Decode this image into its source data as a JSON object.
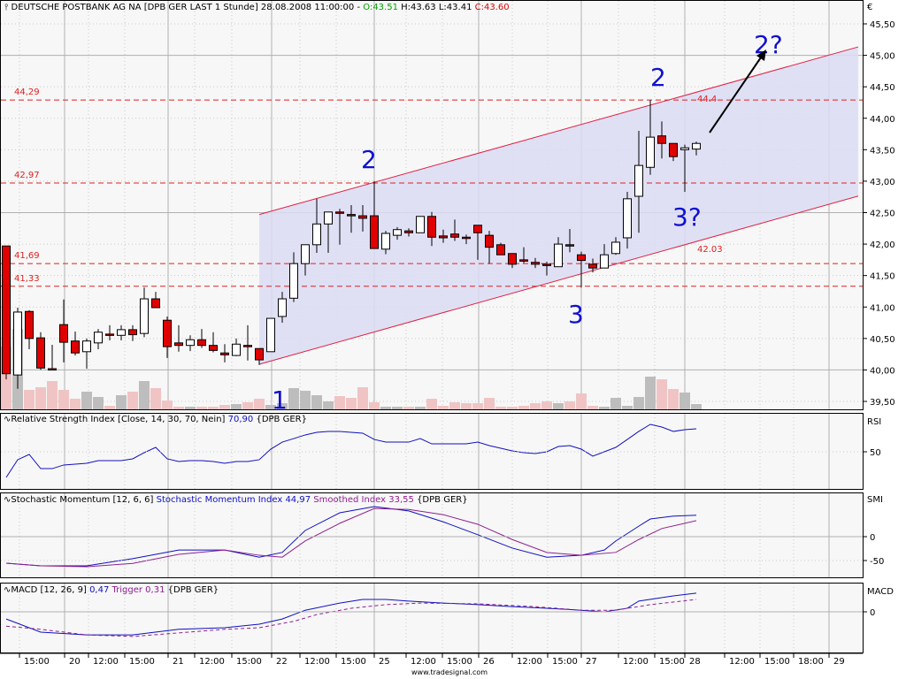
{
  "header": {
    "instrument": "DEUTSCHE POSTBANK AG NA [DPB GER LAST 1 Stunde] 28.08.2008 11:00:00 -",
    "open": "O:43.51",
    "high": "H:43.63",
    "low": "L:43.41",
    "close": "C:43.60",
    "icon": "candlestick-icon"
  },
  "panels": {
    "rsi": {
      "label": "Relative Strength Index [Close, 14, 30, 70, Nein]",
      "value": "70,90",
      "source": "{DPB GER}",
      "axis_title": "RSI",
      "ticks": [
        "50"
      ]
    },
    "smi": {
      "label": "Stochastic Momentum [12, 6, 6]",
      "series1": "Stochastic Momentum Index 44,97",
      "series2": "Smoothed Index 33,55",
      "source": "{DPB GER}",
      "axis_title": "SMI",
      "ticks": [
        "0",
        "-50"
      ]
    },
    "macd": {
      "label": "MACD [12, 26, 9]",
      "value": "0,47",
      "trigger": "Trigger 0,31",
      "source": "{DPB GER}",
      "axis_title": "MACD",
      "ticks": [
        "0"
      ]
    }
  },
  "footer": "www.tradesignal.com",
  "annotations": {
    "waves": [
      "1",
      "2",
      "3",
      "2",
      "3?",
      "2?"
    ],
    "level_labels": [
      "44,29",
      "42,97",
      "41,69",
      "41,33"
    ],
    "channel_labels": [
      "44.4",
      "42.03"
    ]
  },
  "colors": {
    "up": "#ffffff",
    "down": "#e00000",
    "channel_fill": "#dcdcf4",
    "channel_line": "#e02040",
    "level_line": "#e02020",
    "wave_text": "#1010d0",
    "rsi": "#1010c0",
    "smi": "#1010c0",
    "smoothed": "#902090",
    "volume_up": "#bdbdbd",
    "volume_down": "#f0c4c4"
  },
  "chart_data": {
    "type": "candlestick",
    "currency_label": "€",
    "ylim": [
      39.5,
      45.5
    ],
    "y_ticks": [
      "45,50",
      "45,00",
      "44,50",
      "44,00",
      "43,50",
      "43,00",
      "42,50",
      "42,00",
      "41,50",
      "41,00",
      "40,50",
      "40,00",
      "39,50"
    ],
    "x_ticks": [
      "15:00",
      "20",
      "12:00",
      "15:00",
      "21",
      "12:00",
      "15:00",
      "22",
      "12:00",
      "15:00",
      "25",
      "12:00",
      "15:00",
      "26",
      "12:00",
      "15:00",
      "27",
      "12:00",
      "15:00",
      "28",
      "12:00",
      "15:00",
      "18:00",
      "29"
    ],
    "levels": [
      44.29,
      42.97,
      41.69,
      41.33
    ],
    "channel": {
      "start_bar": 22,
      "end_bar": 74,
      "upper": [
        42.47,
        45.13
      ],
      "lower": [
        40.09,
        42.76
      ]
    },
    "ohlc": [
      [
        41.97,
        41.97,
        39.85,
        39.94
      ],
      [
        39.92,
        40.99,
        39.7,
        40.92
      ],
      [
        40.93,
        40.95,
        40.33,
        40.5
      ],
      [
        40.51,
        40.6,
        40.0,
        40.03
      ],
      [
        40.02,
        40.4,
        40.0,
        40.0
      ],
      [
        40.72,
        41.12,
        40.12,
        40.44
      ],
      [
        40.46,
        40.61,
        40.23,
        40.27
      ],
      [
        40.29,
        40.5,
        40.02,
        40.46
      ],
      [
        40.43,
        40.65,
        40.33,
        40.6
      ],
      [
        40.57,
        40.71,
        40.47,
        40.56
      ],
      [
        40.55,
        40.71,
        40.47,
        40.64
      ],
      [
        40.64,
        40.71,
        40.46,
        40.56
      ],
      [
        40.58,
        41.31,
        40.52,
        41.13
      ],
      [
        41.13,
        41.24,
        40.99,
        40.99
      ],
      [
        40.79,
        40.85,
        40.19,
        40.37
      ],
      [
        40.43,
        40.71,
        40.29,
        40.39
      ],
      [
        40.39,
        40.55,
        40.3,
        40.48
      ],
      [
        40.48,
        40.65,
        40.35,
        40.39
      ],
      [
        40.39,
        40.6,
        40.28,
        40.31
      ],
      [
        40.27,
        40.41,
        40.12,
        40.24
      ],
      [
        40.23,
        40.5,
        40.22,
        40.41
      ],
      [
        40.39,
        40.71,
        40.15,
        40.38
      ],
      [
        40.34,
        40.34,
        40.08,
        40.16
      ],
      [
        40.29,
        40.82,
        40.29,
        40.82
      ],
      [
        40.85,
        41.24,
        40.75,
        41.13
      ],
      [
        41.14,
        41.87,
        41.08,
        41.69
      ],
      [
        41.69,
        41.99,
        41.5,
        41.99
      ],
      [
        41.99,
        42.72,
        41.86,
        42.32
      ],
      [
        42.32,
        42.51,
        41.86,
        42.51
      ],
      [
        42.51,
        42.56,
        41.99,
        42.5
      ],
      [
        42.47,
        42.62,
        42.18,
        42.46
      ],
      [
        42.45,
        42.62,
        42.2,
        42.41
      ],
      [
        42.45,
        43.0,
        41.93,
        41.93
      ],
      [
        41.92,
        42.21,
        41.84,
        42.17
      ],
      [
        42.14,
        42.27,
        42.07,
        42.23
      ],
      [
        42.21,
        42.25,
        42.12,
        42.18
      ],
      [
        42.18,
        42.44,
        42.18,
        42.44
      ],
      [
        42.44,
        42.51,
        41.97,
        42.11
      ],
      [
        42.13,
        42.23,
        42.02,
        42.1
      ],
      [
        42.16,
        42.39,
        42.05,
        42.11
      ],
      [
        42.11,
        42.15,
        42.0,
        42.1
      ],
      [
        42.3,
        42.3,
        41.75,
        42.18
      ],
      [
        42.14,
        42.21,
        41.69,
        41.95
      ],
      [
        41.99,
        42.02,
        41.83,
        41.83
      ],
      [
        41.85,
        41.85,
        41.62,
        41.68
      ],
      [
        41.75,
        41.95,
        41.7,
        41.74
      ],
      [
        41.71,
        41.78,
        41.62,
        41.68
      ],
      [
        41.68,
        41.72,
        41.5,
        41.67
      ],
      [
        41.64,
        42.11,
        41.64,
        42.0
      ],
      [
        41.99,
        42.24,
        41.87,
        41.98
      ],
      [
        41.83,
        41.88,
        41.31,
        41.74
      ],
      [
        41.68,
        41.77,
        41.55,
        41.62
      ],
      [
        41.62,
        42.0,
        41.62,
        41.83
      ],
      [
        41.85,
        42.11,
        41.83,
        42.03
      ],
      [
        42.1,
        42.83,
        41.93,
        42.72
      ],
      [
        42.76,
        43.8,
        42.18,
        43.25
      ],
      [
        43.22,
        44.29,
        43.1,
        43.7
      ],
      [
        43.72,
        43.95,
        43.36,
        43.6
      ],
      [
        43.6,
        43.6,
        43.32,
        43.39
      ],
      [
        43.5,
        43.58,
        42.83,
        43.53
      ],
      [
        43.51,
        43.63,
        43.41,
        43.6
      ]
    ],
    "volume": [
      71,
      91,
      22,
      25,
      32,
      22,
      12,
      20,
      14,
      4,
      16,
      20,
      32,
      24,
      10,
      3,
      3,
      3,
      3,
      5,
      6,
      8,
      12,
      5,
      7,
      24,
      21,
      16,
      9,
      15,
      13,
      25,
      8,
      3,
      3,
      3,
      3,
      12,
      4,
      8,
      7,
      7,
      13,
      3,
      3,
      4,
      7,
      9,
      7,
      9,
      18,
      4,
      3,
      13,
      4,
      14,
      37,
      34,
      23,
      19,
      6
    ],
    "rsi": [
      26.7,
      42.8,
      47.6,
      34.7,
      34.7,
      38,
      38.8,
      39.6,
      42,
      42,
      42,
      43.6,
      49.2,
      54,
      43.6,
      41.2,
      42,
      42,
      41.2,
      39.6,
      41.2,
      41.2,
      42.8,
      52.4,
      58.8,
      62,
      65.3,
      67.7,
      68.5,
      68.5,
      67.7,
      66.9,
      61.2,
      58.8,
      58.8,
      58.8,
      62,
      57.2,
      57.2,
      57.2,
      57.2,
      58.8,
      55.6,
      53.2,
      50.8,
      49.2,
      48.4,
      50,
      54.8,
      55.6,
      52.4,
      46,
      50,
      54,
      61.2,
      68.5,
      74.9,
      72.5,
      68.5,
      70.1,
      70.9
    ],
    "smi": [
      [
        0,
        -55.6
      ],
      [
        3,
        -61
      ],
      [
        7,
        -61
      ],
      [
        11,
        -46
      ],
      [
        15,
        -28
      ],
      [
        19,
        -28
      ],
      [
        22,
        -43
      ],
      [
        24,
        -33
      ],
      [
        26,
        13
      ],
      [
        29,
        50
      ],
      [
        32,
        63
      ],
      [
        35,
        54
      ],
      [
        38,
        31
      ],
      [
        41,
        4
      ],
      [
        44,
        -24
      ],
      [
        47,
        -43
      ],
      [
        50,
        -39
      ],
      [
        52,
        -28
      ],
      [
        53,
        -9
      ],
      [
        55,
        22
      ],
      [
        56,
        37
      ],
      [
        58,
        43
      ],
      [
        60,
        44.97
      ]
    ],
    "smoothed": [
      [
        0,
        -55.6
      ],
      [
        3,
        -61
      ],
      [
        7,
        -63
      ],
      [
        11,
        -56
      ],
      [
        15,
        -37
      ],
      [
        19,
        -28
      ],
      [
        22,
        -39
      ],
      [
        24,
        -43
      ],
      [
        26,
        -9
      ],
      [
        29,
        28
      ],
      [
        32,
        59
      ],
      [
        35,
        57
      ],
      [
        38,
        46
      ],
      [
        41,
        26
      ],
      [
        44,
        -6
      ],
      [
        47,
        -33
      ],
      [
        50,
        -39
      ],
      [
        53,
        -33
      ],
      [
        55,
        -6
      ],
      [
        57,
        17
      ],
      [
        60,
        33.55
      ]
    ],
    "macd": [
      [
        0,
        -0.18
      ],
      [
        3,
        -0.51
      ],
      [
        7,
        -0.58
      ],
      [
        11,
        -0.58
      ],
      [
        15,
        -0.44
      ],
      [
        19,
        -0.4
      ],
      [
        22,
        -0.31
      ],
      [
        24,
        -0.18
      ],
      [
        26,
        0.04
      ],
      [
        29,
        0.22
      ],
      [
        31,
        0.31
      ],
      [
        33,
        0.31
      ],
      [
        35,
        0.27
      ],
      [
        38,
        0.22
      ],
      [
        41,
        0.18
      ],
      [
        44,
        0.13
      ],
      [
        47,
        0.09
      ],
      [
        50,
        0.04
      ],
      [
        52,
        0
      ],
      [
        54,
        0.09
      ],
      [
        55,
        0.27
      ],
      [
        58,
        0.4
      ],
      [
        60,
        0.47
      ]
    ],
    "trigger": [
      [
        0,
        -0.36
      ],
      [
        3,
        -0.44
      ],
      [
        7,
        -0.58
      ],
      [
        11,
        -0.62
      ],
      [
        15,
        -0.53
      ],
      [
        19,
        -0.44
      ],
      [
        22,
        -0.4
      ],
      [
        25,
        -0.24
      ],
      [
        27,
        -0.07
      ],
      [
        30,
        0.09
      ],
      [
        33,
        0.18
      ],
      [
        36,
        0.22
      ],
      [
        41,
        0.2
      ],
      [
        46,
        0.13
      ],
      [
        50,
        0.04
      ],
      [
        53,
        0.04
      ],
      [
        56,
        0.18
      ],
      [
        60,
        0.31
      ]
    ]
  }
}
